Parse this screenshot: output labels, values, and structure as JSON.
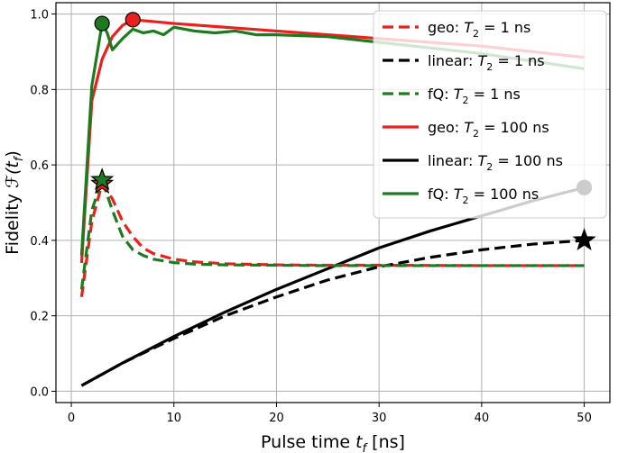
{
  "chart_data": {
    "type": "line",
    "xlabel_main": "Pulse time ",
    "xlabel_math": "t",
    "xlabel_sub": "f",
    "xlabel_unit": " [ns]",
    "ylabel_main": "Fidelity ",
    "ylabel_math": "ℱ(t",
    "ylabel_sub": "f",
    "ylabel_close": ")",
    "xlim": [
      -1.5,
      52.5
    ],
    "ylim": [
      -0.03,
      1.03
    ],
    "x_ticks": [
      0,
      10,
      20,
      30,
      40,
      50
    ],
    "x_tick_labels": [
      "0",
      "10",
      "20",
      "30",
      "40",
      "50"
    ],
    "y_ticks": [
      0.0,
      0.2,
      0.4,
      0.6,
      0.8,
      1.0
    ],
    "y_tick_labels": [
      "0.0",
      "0.2",
      "0.4",
      "0.6",
      "0.8",
      "1.0"
    ],
    "grid": true,
    "legend_placement": "top-right",
    "series": [
      {
        "name_prefix": "geo: ",
        "name_var": "T",
        "name_sub": "2",
        "name_suffix": " = 1 ns",
        "color": "#e8211c",
        "style": "dashed",
        "x": [
          1,
          2,
          3,
          4,
          5,
          6,
          7,
          8,
          10,
          12,
          15,
          20,
          25,
          30,
          40,
          50
        ],
        "y": [
          0.25,
          0.45,
          0.55,
          0.51,
          0.45,
          0.41,
          0.38,
          0.365,
          0.35,
          0.343,
          0.338,
          0.335,
          0.334,
          0.334,
          0.333,
          0.333
        ],
        "marker": {
          "type": "star",
          "x": 3,
          "y": 0.55
        }
      },
      {
        "name_prefix": "linear: ",
        "name_var": "T",
        "name_sub": "2",
        "name_suffix": " = 1 ns",
        "color": "#000000",
        "style": "dashed",
        "x": [
          1,
          5,
          10,
          15,
          20,
          25,
          30,
          35,
          40,
          45,
          50
        ],
        "y": [
          0.015,
          0.075,
          0.14,
          0.2,
          0.25,
          0.295,
          0.33,
          0.355,
          0.375,
          0.39,
          0.4
        ],
        "marker": {
          "type": "star",
          "x": 50,
          "y": 0.4
        }
      },
      {
        "name_prefix": "fQ: ",
        "name_var": "T",
        "name_sub": "2",
        "name_suffix": " = 1 ns",
        "color": "#1e7a1e",
        "style": "dashed",
        "x": [
          1,
          2,
          3,
          4,
          5,
          6,
          7,
          8,
          10,
          12,
          15,
          20,
          25,
          30,
          40,
          50
        ],
        "y": [
          0.27,
          0.48,
          0.56,
          0.48,
          0.41,
          0.375,
          0.36,
          0.35,
          0.341,
          0.337,
          0.335,
          0.334,
          0.333,
          0.333,
          0.333,
          0.333
        ],
        "marker": {
          "type": "star",
          "x": 3,
          "y": 0.56
        }
      },
      {
        "name_prefix": "geo: ",
        "name_var": "T",
        "name_sub": "2",
        "name_suffix": " = 100 ns",
        "color": "#e8211c",
        "style": "solid",
        "x": [
          1,
          2,
          3,
          4,
          5,
          6,
          8,
          10,
          15,
          20,
          25,
          30,
          35,
          40,
          45,
          50
        ],
        "y": [
          0.34,
          0.77,
          0.88,
          0.94,
          0.97,
          0.985,
          0.98,
          0.975,
          0.965,
          0.955,
          0.945,
          0.935,
          0.925,
          0.915,
          0.9,
          0.885
        ],
        "marker": {
          "type": "circle",
          "x": 6,
          "y": 0.985
        }
      },
      {
        "name_prefix": "linear: ",
        "name_var": "T",
        "name_sub": "2",
        "name_suffix": " = 100 ns",
        "color": "#000000",
        "style": "solid",
        "x": [
          1,
          5,
          10,
          15,
          20,
          25,
          30,
          35,
          40,
          45,
          50
        ],
        "y": [
          0.015,
          0.075,
          0.145,
          0.21,
          0.27,
          0.325,
          0.38,
          0.425,
          0.465,
          0.505,
          0.54
        ],
        "marker": {
          "type": "circle",
          "x": 50,
          "y": 0.54
        }
      },
      {
        "name_prefix": "fQ: ",
        "name_var": "T",
        "name_sub": "2",
        "name_suffix": " = 100 ns",
        "color": "#1e7a1e",
        "style": "solid",
        "x": [
          1,
          2,
          3,
          3.5,
          4,
          5,
          6,
          7,
          8,
          9,
          10,
          12,
          14,
          16,
          18,
          20,
          25,
          30,
          35,
          40,
          45,
          50
        ],
        "y": [
          0.36,
          0.81,
          0.975,
          0.95,
          0.905,
          0.935,
          0.96,
          0.95,
          0.955,
          0.945,
          0.965,
          0.955,
          0.95,
          0.955,
          0.945,
          0.945,
          0.94,
          0.925,
          0.91,
          0.895,
          0.875,
          0.855
        ],
        "marker": {
          "type": "circle",
          "x": 3,
          "y": 0.975
        }
      }
    ]
  }
}
